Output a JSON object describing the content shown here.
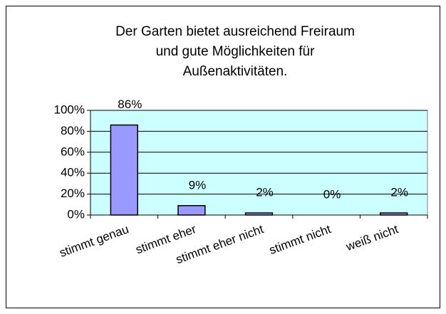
{
  "chart_data": {
    "type": "bar",
    "title": [
      "Der Garten bietet ausreichend Freiraum",
      "und gute Möglichkeiten für",
      "Außenaktivitäten."
    ],
    "categories": [
      "stimmt genau",
      "stimmt eher",
      "stimmt eher nicht",
      "stimmt nicht",
      "weiß nicht"
    ],
    "values": [
      86,
      9,
      2,
      0,
      2
    ],
    "value_labels": [
      "86%",
      "9%",
      "2%",
      "0%",
      "2%"
    ],
    "color": "#9999ff",
    "ylim": [
      0,
      100
    ],
    "yticks": [
      {
        "value": 0,
        "label": "0%"
      },
      {
        "value": 20,
        "label": "20%"
      },
      {
        "value": 40,
        "label": "40%"
      },
      {
        "value": 60,
        "label": "60%"
      },
      {
        "value": 80,
        "label": "80%"
      },
      {
        "value": 100,
        "label": "100%"
      }
    ],
    "grid": true
  }
}
